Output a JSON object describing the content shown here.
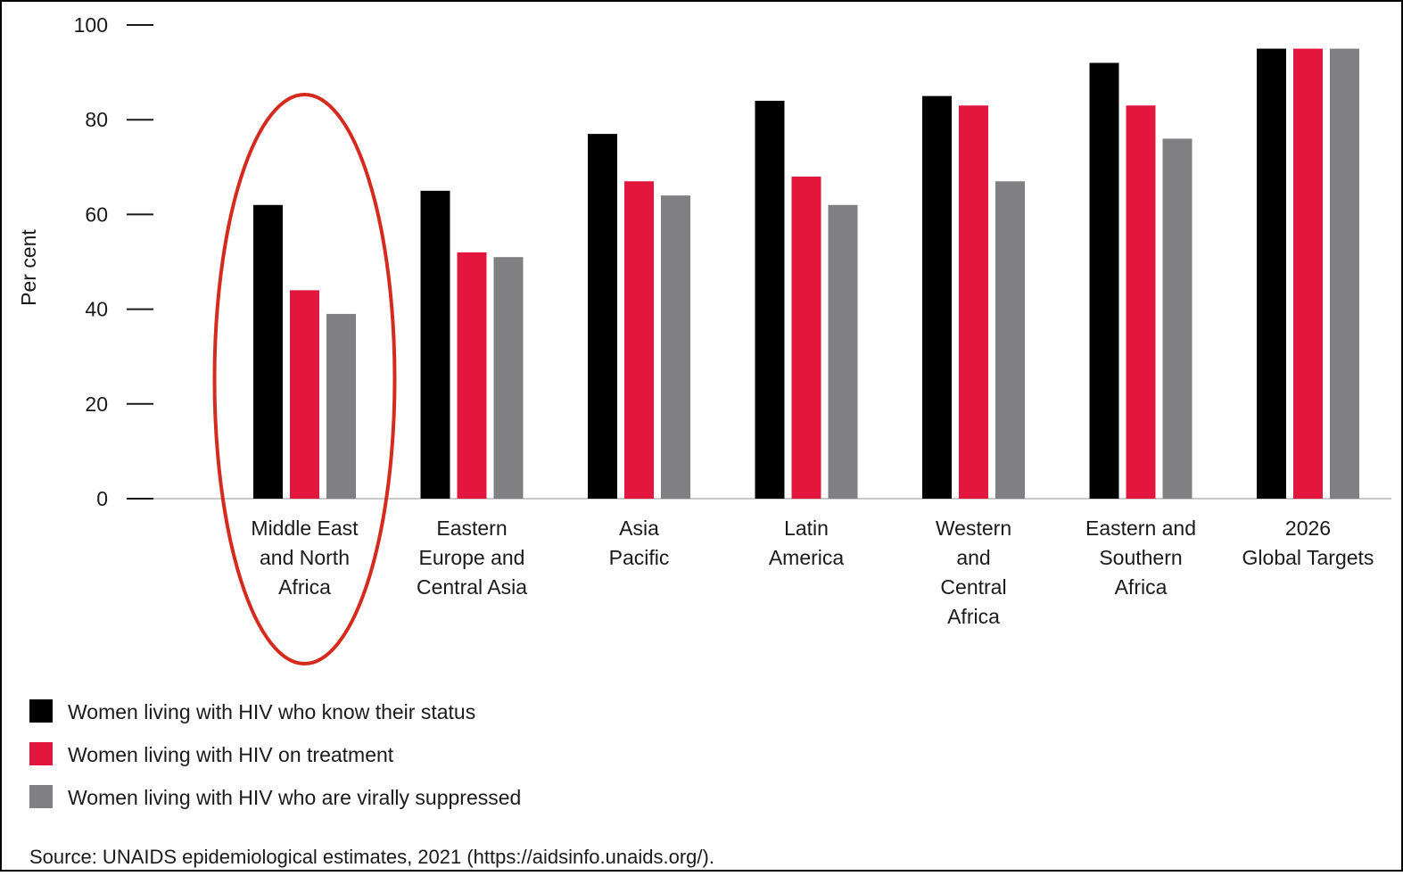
{
  "chart_data": {
    "type": "bar",
    "ylabel": "Per cent",
    "ylim": [
      0,
      100
    ],
    "yticks": [
      "0",
      "20",
      "40",
      "60",
      "80",
      "100"
    ],
    "categories": [
      [
        "Middle East",
        "and North",
        "Africa"
      ],
      [
        "Eastern",
        "Europe and",
        "Central Asia"
      ],
      [
        "Asia",
        "Pacific"
      ],
      [
        "Latin",
        "America"
      ],
      [
        "Western",
        "and",
        "Central",
        "Africa"
      ],
      [
        "Eastern and",
        "Southern",
        "Africa"
      ],
      [
        "2026",
        "Global Targets"
      ]
    ],
    "series": [
      {
        "name": "Women living with HIV who know their status",
        "color": "#000000",
        "values": [
          62,
          65,
          77,
          84,
          85,
          92,
          95
        ]
      },
      {
        "name": "Women living with HIV on treatment",
        "color": "#e3173e",
        "values": [
          44,
          52,
          67,
          68,
          83,
          83,
          95
        ]
      },
      {
        "name": "Women living with HIV who are virally suppressed",
        "color": "#808083",
        "values": [
          39,
          51,
          64,
          62,
          67,
          76,
          95
        ]
      }
    ],
    "highlight": {
      "category_index": 0,
      "color": "#d52b1e"
    },
    "grid": false,
    "legend_position": "bottom-left",
    "source": "Source: UNAIDS epidemiological estimates, 2021 (https://aidsinfo.unaids.org/)."
  }
}
